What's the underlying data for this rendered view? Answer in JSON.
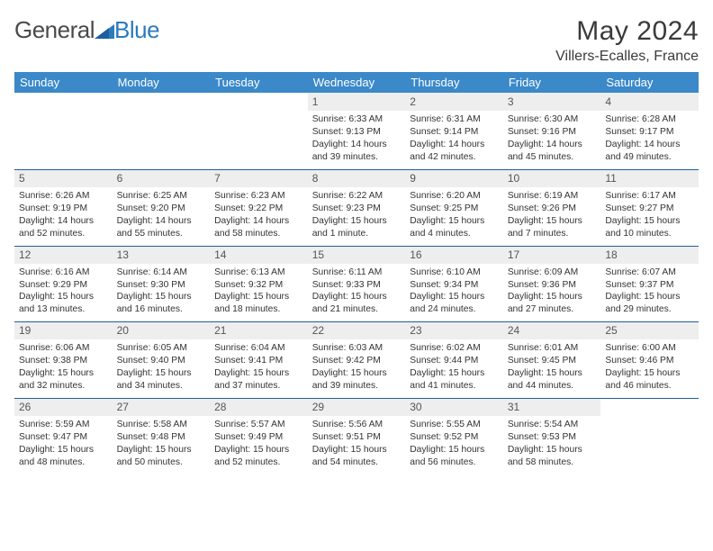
{
  "logo": {
    "text1": "General",
    "text2": "Blue"
  },
  "title": "May 2024",
  "location": "Villers-Ecalles, France",
  "colors": {
    "header_bg": "#3b89c9",
    "header_text": "#ffffff",
    "daynum_bg": "#eeeeee",
    "divider": "#1f5f9d",
    "body_text": "#333333",
    "logo_gray": "#4a4a4a",
    "logo_blue": "#2b7bbd"
  },
  "day_headers": [
    "Sunday",
    "Monday",
    "Tuesday",
    "Wednesday",
    "Thursday",
    "Friday",
    "Saturday"
  ],
  "weeks": [
    [
      {
        "empty": true
      },
      {
        "empty": true
      },
      {
        "empty": true
      },
      {
        "n": "1",
        "sr": "Sunrise: 6:33 AM",
        "ss": "Sunset: 9:13 PM",
        "dl": "Daylight: 14 hours and 39 minutes."
      },
      {
        "n": "2",
        "sr": "Sunrise: 6:31 AM",
        "ss": "Sunset: 9:14 PM",
        "dl": "Daylight: 14 hours and 42 minutes."
      },
      {
        "n": "3",
        "sr": "Sunrise: 6:30 AM",
        "ss": "Sunset: 9:16 PM",
        "dl": "Daylight: 14 hours and 45 minutes."
      },
      {
        "n": "4",
        "sr": "Sunrise: 6:28 AM",
        "ss": "Sunset: 9:17 PM",
        "dl": "Daylight: 14 hours and 49 minutes."
      }
    ],
    [
      {
        "n": "5",
        "sr": "Sunrise: 6:26 AM",
        "ss": "Sunset: 9:19 PM",
        "dl": "Daylight: 14 hours and 52 minutes."
      },
      {
        "n": "6",
        "sr": "Sunrise: 6:25 AM",
        "ss": "Sunset: 9:20 PM",
        "dl": "Daylight: 14 hours and 55 minutes."
      },
      {
        "n": "7",
        "sr": "Sunrise: 6:23 AM",
        "ss": "Sunset: 9:22 PM",
        "dl": "Daylight: 14 hours and 58 minutes."
      },
      {
        "n": "8",
        "sr": "Sunrise: 6:22 AM",
        "ss": "Sunset: 9:23 PM",
        "dl": "Daylight: 15 hours and 1 minute."
      },
      {
        "n": "9",
        "sr": "Sunrise: 6:20 AM",
        "ss": "Sunset: 9:25 PM",
        "dl": "Daylight: 15 hours and 4 minutes."
      },
      {
        "n": "10",
        "sr": "Sunrise: 6:19 AM",
        "ss": "Sunset: 9:26 PM",
        "dl": "Daylight: 15 hours and 7 minutes."
      },
      {
        "n": "11",
        "sr": "Sunrise: 6:17 AM",
        "ss": "Sunset: 9:27 PM",
        "dl": "Daylight: 15 hours and 10 minutes."
      }
    ],
    [
      {
        "n": "12",
        "sr": "Sunrise: 6:16 AM",
        "ss": "Sunset: 9:29 PM",
        "dl": "Daylight: 15 hours and 13 minutes."
      },
      {
        "n": "13",
        "sr": "Sunrise: 6:14 AM",
        "ss": "Sunset: 9:30 PM",
        "dl": "Daylight: 15 hours and 16 minutes."
      },
      {
        "n": "14",
        "sr": "Sunrise: 6:13 AM",
        "ss": "Sunset: 9:32 PM",
        "dl": "Daylight: 15 hours and 18 minutes."
      },
      {
        "n": "15",
        "sr": "Sunrise: 6:11 AM",
        "ss": "Sunset: 9:33 PM",
        "dl": "Daylight: 15 hours and 21 minutes."
      },
      {
        "n": "16",
        "sr": "Sunrise: 6:10 AM",
        "ss": "Sunset: 9:34 PM",
        "dl": "Daylight: 15 hours and 24 minutes."
      },
      {
        "n": "17",
        "sr": "Sunrise: 6:09 AM",
        "ss": "Sunset: 9:36 PM",
        "dl": "Daylight: 15 hours and 27 minutes."
      },
      {
        "n": "18",
        "sr": "Sunrise: 6:07 AM",
        "ss": "Sunset: 9:37 PM",
        "dl": "Daylight: 15 hours and 29 minutes."
      }
    ],
    [
      {
        "n": "19",
        "sr": "Sunrise: 6:06 AM",
        "ss": "Sunset: 9:38 PM",
        "dl": "Daylight: 15 hours and 32 minutes."
      },
      {
        "n": "20",
        "sr": "Sunrise: 6:05 AM",
        "ss": "Sunset: 9:40 PM",
        "dl": "Daylight: 15 hours and 34 minutes."
      },
      {
        "n": "21",
        "sr": "Sunrise: 6:04 AM",
        "ss": "Sunset: 9:41 PM",
        "dl": "Daylight: 15 hours and 37 minutes."
      },
      {
        "n": "22",
        "sr": "Sunrise: 6:03 AM",
        "ss": "Sunset: 9:42 PM",
        "dl": "Daylight: 15 hours and 39 minutes."
      },
      {
        "n": "23",
        "sr": "Sunrise: 6:02 AM",
        "ss": "Sunset: 9:44 PM",
        "dl": "Daylight: 15 hours and 41 minutes."
      },
      {
        "n": "24",
        "sr": "Sunrise: 6:01 AM",
        "ss": "Sunset: 9:45 PM",
        "dl": "Daylight: 15 hours and 44 minutes."
      },
      {
        "n": "25",
        "sr": "Sunrise: 6:00 AM",
        "ss": "Sunset: 9:46 PM",
        "dl": "Daylight: 15 hours and 46 minutes."
      }
    ],
    [
      {
        "n": "26",
        "sr": "Sunrise: 5:59 AM",
        "ss": "Sunset: 9:47 PM",
        "dl": "Daylight: 15 hours and 48 minutes."
      },
      {
        "n": "27",
        "sr": "Sunrise: 5:58 AM",
        "ss": "Sunset: 9:48 PM",
        "dl": "Daylight: 15 hours and 50 minutes."
      },
      {
        "n": "28",
        "sr": "Sunrise: 5:57 AM",
        "ss": "Sunset: 9:49 PM",
        "dl": "Daylight: 15 hours and 52 minutes."
      },
      {
        "n": "29",
        "sr": "Sunrise: 5:56 AM",
        "ss": "Sunset: 9:51 PM",
        "dl": "Daylight: 15 hours and 54 minutes."
      },
      {
        "n": "30",
        "sr": "Sunrise: 5:55 AM",
        "ss": "Sunset: 9:52 PM",
        "dl": "Daylight: 15 hours and 56 minutes."
      },
      {
        "n": "31",
        "sr": "Sunrise: 5:54 AM",
        "ss": "Sunset: 9:53 PM",
        "dl": "Daylight: 15 hours and 58 minutes."
      },
      {
        "empty": true
      }
    ]
  ]
}
